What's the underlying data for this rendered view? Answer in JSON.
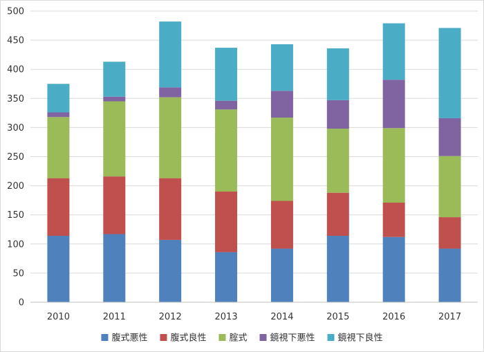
{
  "chart_data": {
    "type": "bar",
    "stacked": true,
    "categories": [
      "2010",
      "2011",
      "2012",
      "2013",
      "2014",
      "2015",
      "2016",
      "2017"
    ],
    "series": [
      {
        "name": "腹式悪性",
        "color": "#4f81bd",
        "values": [
          114,
          117,
          107,
          86,
          92,
          114,
          112,
          92
        ]
      },
      {
        "name": "腹式良性",
        "color": "#c0504d",
        "values": [
          99,
          99,
          106,
          104,
          82,
          74,
          59,
          54
        ]
      },
      {
        "name": "腟式",
        "color": "#9bbb59",
        "values": [
          105,
          129,
          139,
          141,
          143,
          110,
          128,
          105
        ]
      },
      {
        "name": "鏡視下悪性",
        "color": "#8064a2",
        "values": [
          8,
          8,
          17,
          15,
          46,
          49,
          83,
          65
        ]
      },
      {
        "name": "鏡視下良性",
        "color": "#4bacc6",
        "values": [
          49,
          60,
          113,
          91,
          80,
          89,
          97,
          155
        ]
      }
    ],
    "ylim": [
      0,
      500
    ],
    "yticks": [
      0,
      50,
      100,
      150,
      200,
      250,
      300,
      350,
      400,
      450,
      500
    ],
    "grid": true,
    "legend_position": "bottom"
  }
}
